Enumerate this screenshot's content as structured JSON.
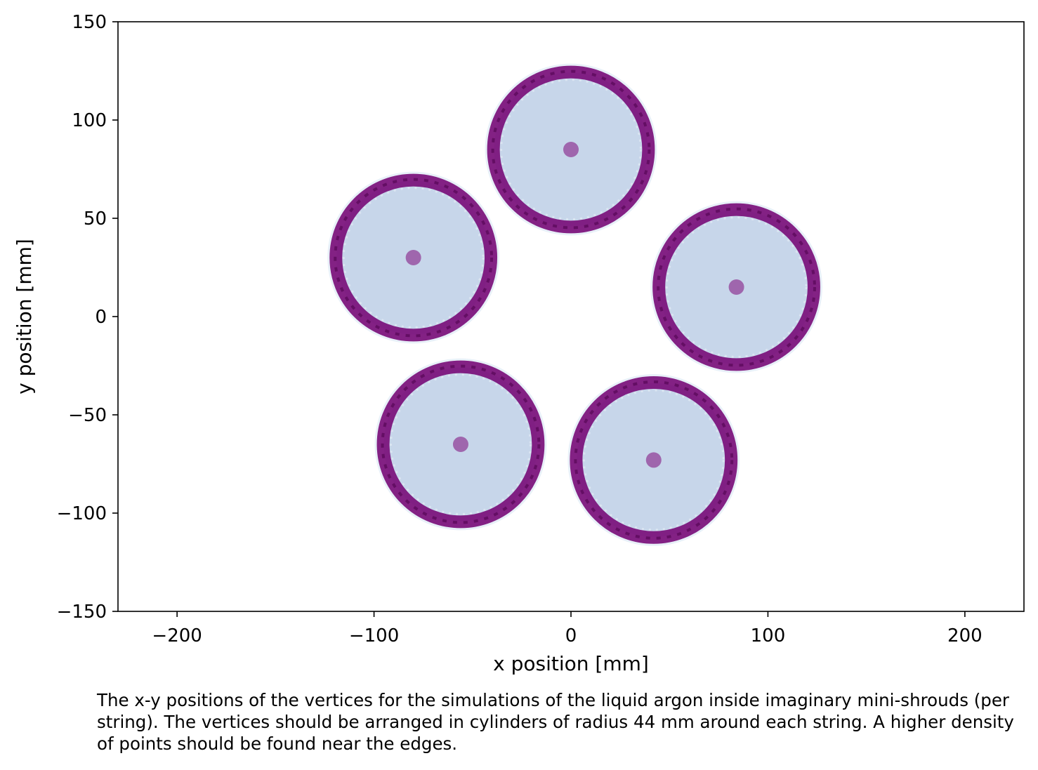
{
  "chart_data": {
    "type": "heatmap",
    "xlabel": "x position [mm]",
    "ylabel": "y position [mm]",
    "xlim": [
      -230,
      230
    ],
    "ylim": [
      -150,
      150
    ],
    "x_ticks": [
      -200,
      -100,
      0,
      100,
      200
    ],
    "y_ticks": [
      -150,
      -100,
      -50,
      0,
      50,
      100,
      150
    ],
    "grid": false,
    "colormap": "BuPu",
    "colors": {
      "ring": "#7a0f7a",
      "ring_dark": "#5c0a5c",
      "inner": "#c7d6ea",
      "core": "#9a5aa6",
      "edge_soft": "#e8f0f8"
    },
    "ring_radius_mm": 44,
    "clusters": [
      {
        "x": 0,
        "y": 85
      },
      {
        "x": -80,
        "y": 30
      },
      {
        "x": 84,
        "y": 15
      },
      {
        "x": -56,
        "y": -65
      },
      {
        "x": 42,
        "y": -73
      }
    ]
  },
  "caption": "The x-y positions of the vertices for the simulations of the liquid argon inside imaginary mini-shrouds (per string). The vertices should be arranged in cylinders of radius 44 mm around each string. A higher density of points should be found near the edges."
}
